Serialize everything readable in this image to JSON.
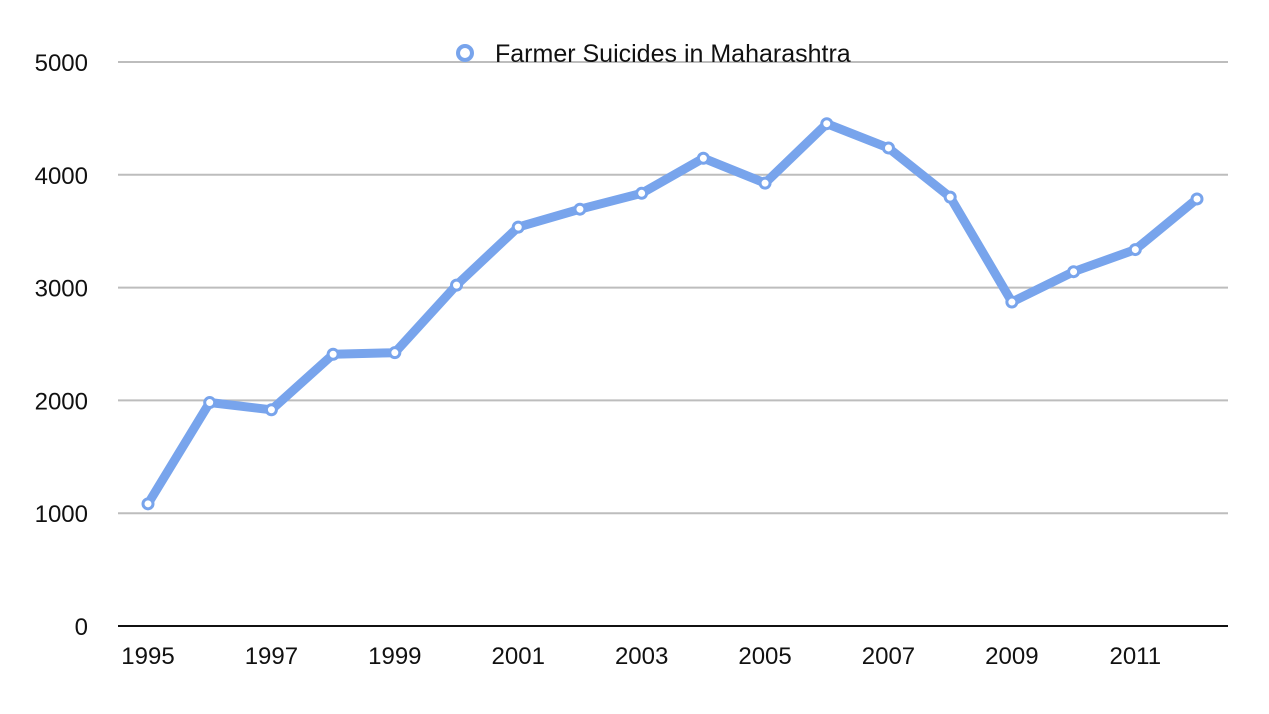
{
  "chart_data": {
    "type": "line",
    "title": "",
    "xlabel": "",
    "ylabel": "",
    "x": [
      1995,
      1996,
      1997,
      1998,
      1999,
      2000,
      2001,
      2002,
      2003,
      2004,
      2005,
      2006,
      2007,
      2008,
      2009,
      2010,
      2011,
      2012
    ],
    "x_tick_labels": [
      "1995",
      "1997",
      "1999",
      "2001",
      "2003",
      "2005",
      "2007",
      "2009",
      "2011"
    ],
    "y_tick_labels": [
      "0",
      "1000",
      "2000",
      "3000",
      "4000",
      "5000"
    ],
    "ylim": [
      0,
      5000
    ],
    "grid": true,
    "legend": {
      "placement": "top-center",
      "marker": "hollow-circle"
    },
    "series": [
      {
        "name": "Farmer Suicides in Maharashtra",
        "color": "#78a4ec",
        "values": [
          1083,
          1981,
          1917,
          2409,
          2423,
          3022,
          3536,
          3695,
          3836,
          4147,
          3926,
          4453,
          4238,
          3802,
          2872,
          3141,
          3337,
          3786
        ]
      }
    ]
  }
}
